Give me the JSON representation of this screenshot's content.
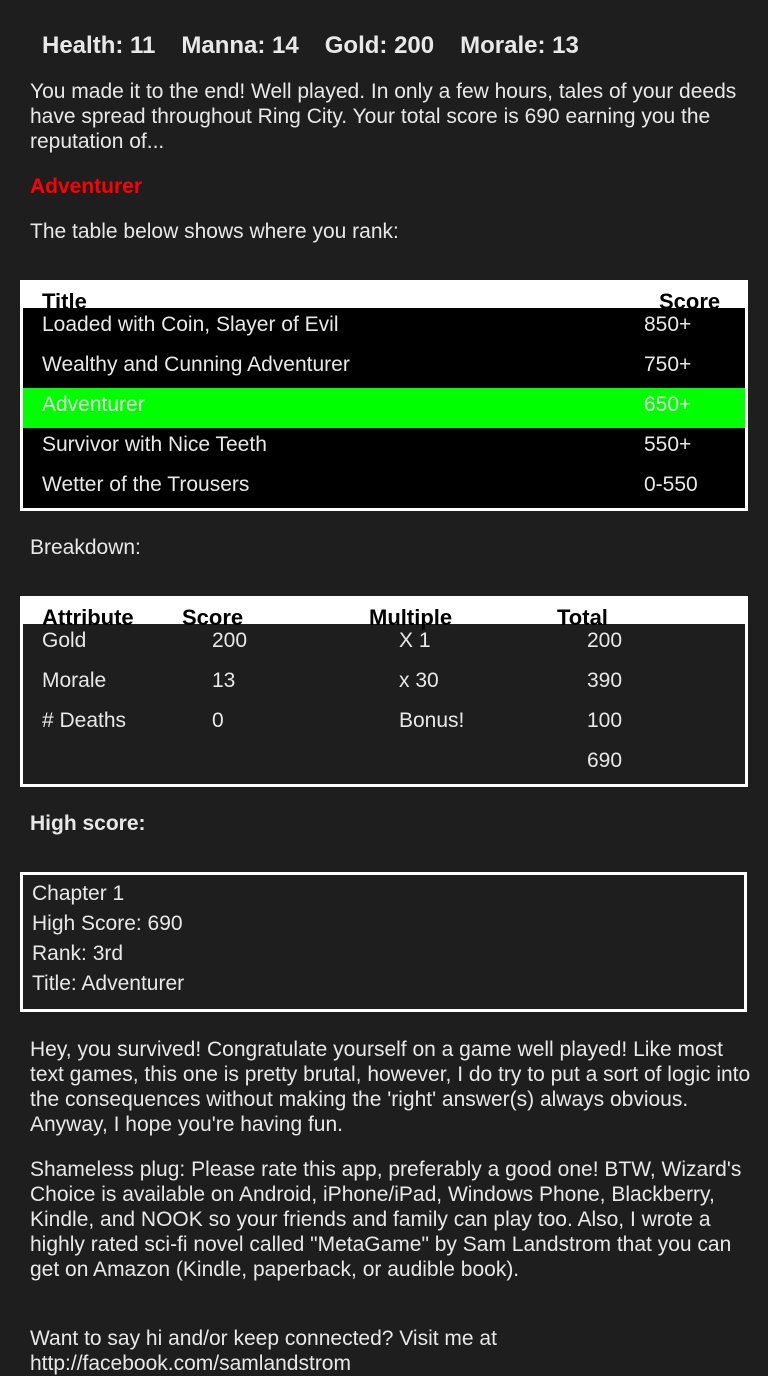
{
  "stats": {
    "health": "Health: 11",
    "manna": "Manna: 14",
    "gold": "Gold: 200",
    "morale": "Morale: 13"
  },
  "intro": "You made it to the end! Well played. In only a few hours, tales of your deeds have spread throughout Ring City. Your total score is 690 earning you the reputation of...",
  "reputation": "Adventurer",
  "reputation_color": "#ff0000",
  "table_intro": "The table below shows where you rank:",
  "rank_table": {
    "headers": [
      "Title",
      "Score"
    ],
    "rows": [
      {
        "title": "Loaded with Coin, Slayer of Evil",
        "score": "850+"
      },
      {
        "title": "Wealthy and Cunning Adventurer",
        "score": "750+"
      },
      {
        "title": "Adventurer",
        "score": "650+",
        "highlight": true
      },
      {
        "title": "Survivor with Nice Teeth",
        "score": "550+"
      },
      {
        "title": "Wetter of the Trousers",
        "score": "0-550"
      }
    ],
    "highlight_color": "#00ff00"
  },
  "breakdown_label": "Breakdown:",
  "breakdown": {
    "headers": [
      "Attribute",
      "Score",
      "Multiple",
      "Total"
    ],
    "rows": [
      [
        "Gold",
        "200",
        "X 1",
        "200"
      ],
      [
        "Morale",
        "13",
        "x 30",
        "390"
      ],
      [
        "# Deaths",
        "0",
        "Bonus!",
        "100"
      ],
      [
        "",
        "",
        "",
        "690"
      ]
    ]
  },
  "high_score_label": "High score:",
  "high_score": [
    "Chapter 1",
    "High Score: 690",
    "Rank: 3rd",
    "Title: Adventurer"
  ],
  "para1": "Hey, you survived! Congratulate yourself on a game well played! Like most text games, this one is pretty brutal, however, I do try to put a sort of logic into the consequences without making the 'right' answer(s) always obvious. Anyway, I hope you're having fun.",
  "para2": "Shameless plug: Please rate this app, preferably a good one! BTW, Wizard's Choice is available on Android, iPhone/iPad, Windows Phone, Blackberry, Kindle, and NOOK so your friends and family can play too. Also, I wrote a highly rated sci-fi novel called \"MetaGame\" by Sam Landstrom that you can get on Amazon (Kindle, paperback, or audible book).",
  "para3": "Want to say hi and/or keep connected? Visit me at http://facebook.com/samlandstrom"
}
